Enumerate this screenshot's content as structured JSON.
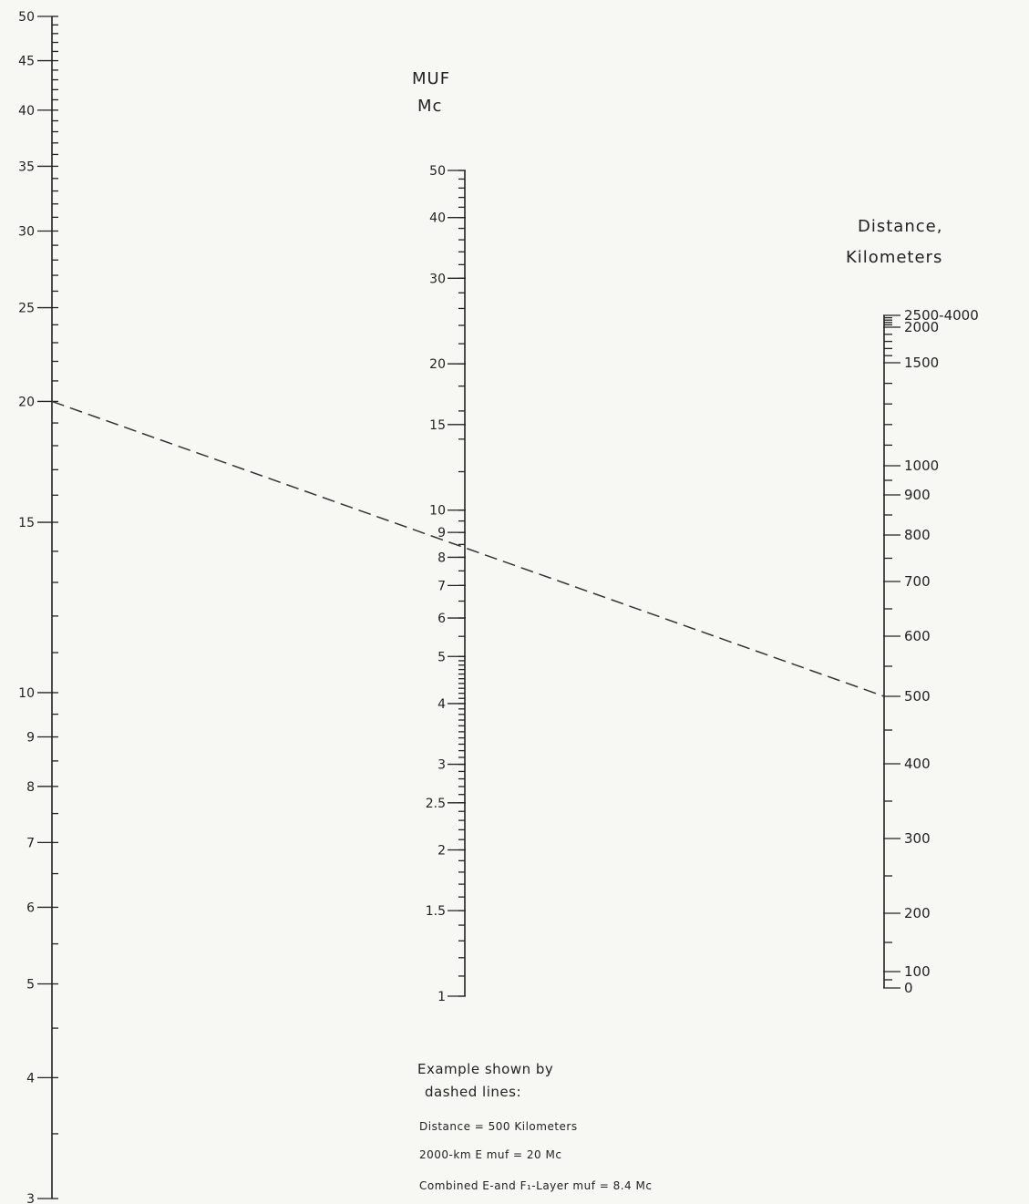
{
  "muf_title": {
    "line1": "MUF",
    "line2": "Mc"
  },
  "distance_title": {
    "line1": "Distance,",
    "line2": "Kilometers"
  },
  "left_scale": {
    "name": "2000-km E muf scale",
    "min": 3,
    "max": 50,
    "major": [
      {
        "v": 50,
        "label": "50"
      },
      {
        "v": 45,
        "label": "45"
      },
      {
        "v": 40,
        "label": "40"
      },
      {
        "v": 35,
        "label": "35"
      },
      {
        "v": 30,
        "label": "30"
      },
      {
        "v": 25,
        "label": "25"
      },
      {
        "v": 20,
        "label": "20"
      },
      {
        "v": 15,
        "label": "15"
      },
      {
        "v": 10,
        "label": "10"
      },
      {
        "v": 9,
        "label": "9"
      },
      {
        "v": 8,
        "label": "8"
      },
      {
        "v": 7,
        "label": "7"
      },
      {
        "v": 6,
        "label": "6"
      },
      {
        "v": 5,
        "label": "5"
      },
      {
        "v": 4,
        "label": "4"
      },
      {
        "v": 3,
        "label": "3"
      }
    ]
  },
  "middle_scale": {
    "name": "combined MUF scale",
    "min": 1,
    "max": 50,
    "major": [
      {
        "v": 50,
        "label": "50"
      },
      {
        "v": 40,
        "label": "40"
      },
      {
        "v": 30,
        "label": "30"
      },
      {
        "v": 20,
        "label": "20"
      },
      {
        "v": 15,
        "label": "15"
      },
      {
        "v": 10,
        "label": "10"
      },
      {
        "v": 9,
        "label": "9"
      },
      {
        "v": 8,
        "label": "8"
      },
      {
        "v": 7,
        "label": "7"
      },
      {
        "v": 6,
        "label": "6"
      },
      {
        "v": 5,
        "label": "5"
      },
      {
        "v": 4,
        "label": "4"
      },
      {
        "v": 3,
        "label": "3"
      },
      {
        "v": 2.5,
        "label": "2.5"
      },
      {
        "v": 2,
        "label": "2"
      },
      {
        "v": 1.5,
        "label": "1.5"
      },
      {
        "v": 1,
        "label": "1"
      }
    ]
  },
  "right_scale": {
    "name": "distance scale",
    "major": [
      {
        "v": 0,
        "label": "0"
      },
      {
        "v": 100,
        "label": "100"
      },
      {
        "v": 200,
        "label": "200"
      },
      {
        "v": 300,
        "label": "300"
      },
      {
        "v": 400,
        "label": "400"
      },
      {
        "v": 500,
        "label": "500"
      },
      {
        "v": 600,
        "label": "600"
      },
      {
        "v": 700,
        "label": "700"
      },
      {
        "v": 800,
        "label": "800"
      },
      {
        "v": 900,
        "label": "900"
      },
      {
        "v": 1000,
        "label": "1000"
      },
      {
        "v": 1500,
        "label": "1500"
      },
      {
        "v": 2000,
        "label": "2000"
      },
      {
        "v": 2500,
        "label": "2500-4000"
      }
    ]
  },
  "example": {
    "distance_km": 500,
    "e_muf": 20,
    "combined_muf": 8.4,
    "heading1": "Example shown by",
    "heading2": "dashed lines:",
    "line1": "Distance = 500 Kilometers",
    "line2": "2000-km E muf = 20 Mc",
    "line3": "Combined E-and F₁-Layer muf = 8.4 Mc"
  }
}
